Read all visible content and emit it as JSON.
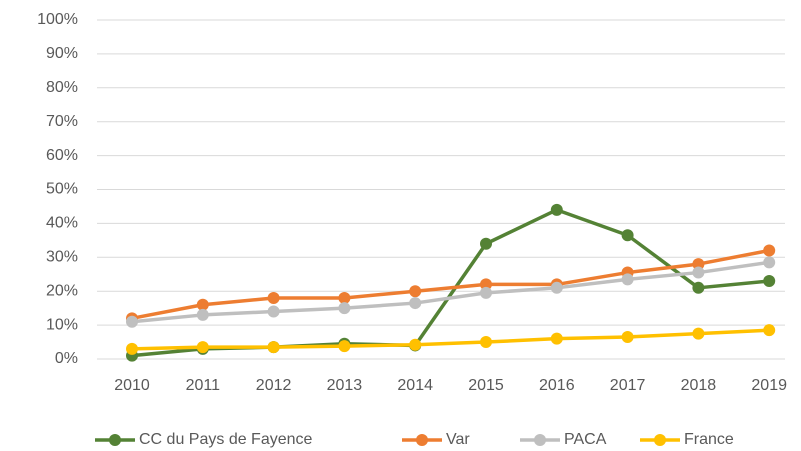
{
  "chart_data": {
    "type": "line",
    "categories": [
      "2010",
      "2011",
      "2012",
      "2013",
      "2014",
      "2015",
      "2016",
      "2017",
      "2018",
      "2019"
    ],
    "series": [
      {
        "name": "CC du Pays de Fayence",
        "color": "#548235",
        "values": [
          1,
          3,
          3.5,
          4.5,
          4,
          34,
          44,
          36.5,
          21,
          23
        ]
      },
      {
        "name": "Var",
        "color": "#ed7d31",
        "values": [
          12,
          16,
          18,
          18,
          20,
          22,
          22,
          25.5,
          28,
          32
        ]
      },
      {
        "name": "PACA",
        "color": "#bfbfbf",
        "values": [
          11,
          13,
          14,
          15,
          16.5,
          19.5,
          21,
          23.5,
          25.5,
          28.5
        ]
      },
      {
        "name": "France",
        "color": "#ffc000",
        "values": [
          3,
          3.5,
          3.5,
          3.8,
          4.2,
          5,
          6,
          6.5,
          7.5,
          8.5
        ]
      }
    ],
    "ylim": [
      0,
      100
    ],
    "yticks": [
      {
        "value": 0,
        "label": "0%"
      },
      {
        "value": 10,
        "label": "10%"
      },
      {
        "value": 20,
        "label": "20%"
      },
      {
        "value": 30,
        "label": "30%"
      },
      {
        "value": 40,
        "label": "40%"
      },
      {
        "value": 50,
        "label": "50%"
      },
      {
        "value": 60,
        "label": "60%"
      },
      {
        "value": 70,
        "label": "70%"
      },
      {
        "value": 80,
        "label": "80%"
      },
      {
        "value": 90,
        "label": "90%"
      },
      {
        "value": 100,
        "label": "100%"
      }
    ],
    "grid": true,
    "legend": "bottom"
  }
}
